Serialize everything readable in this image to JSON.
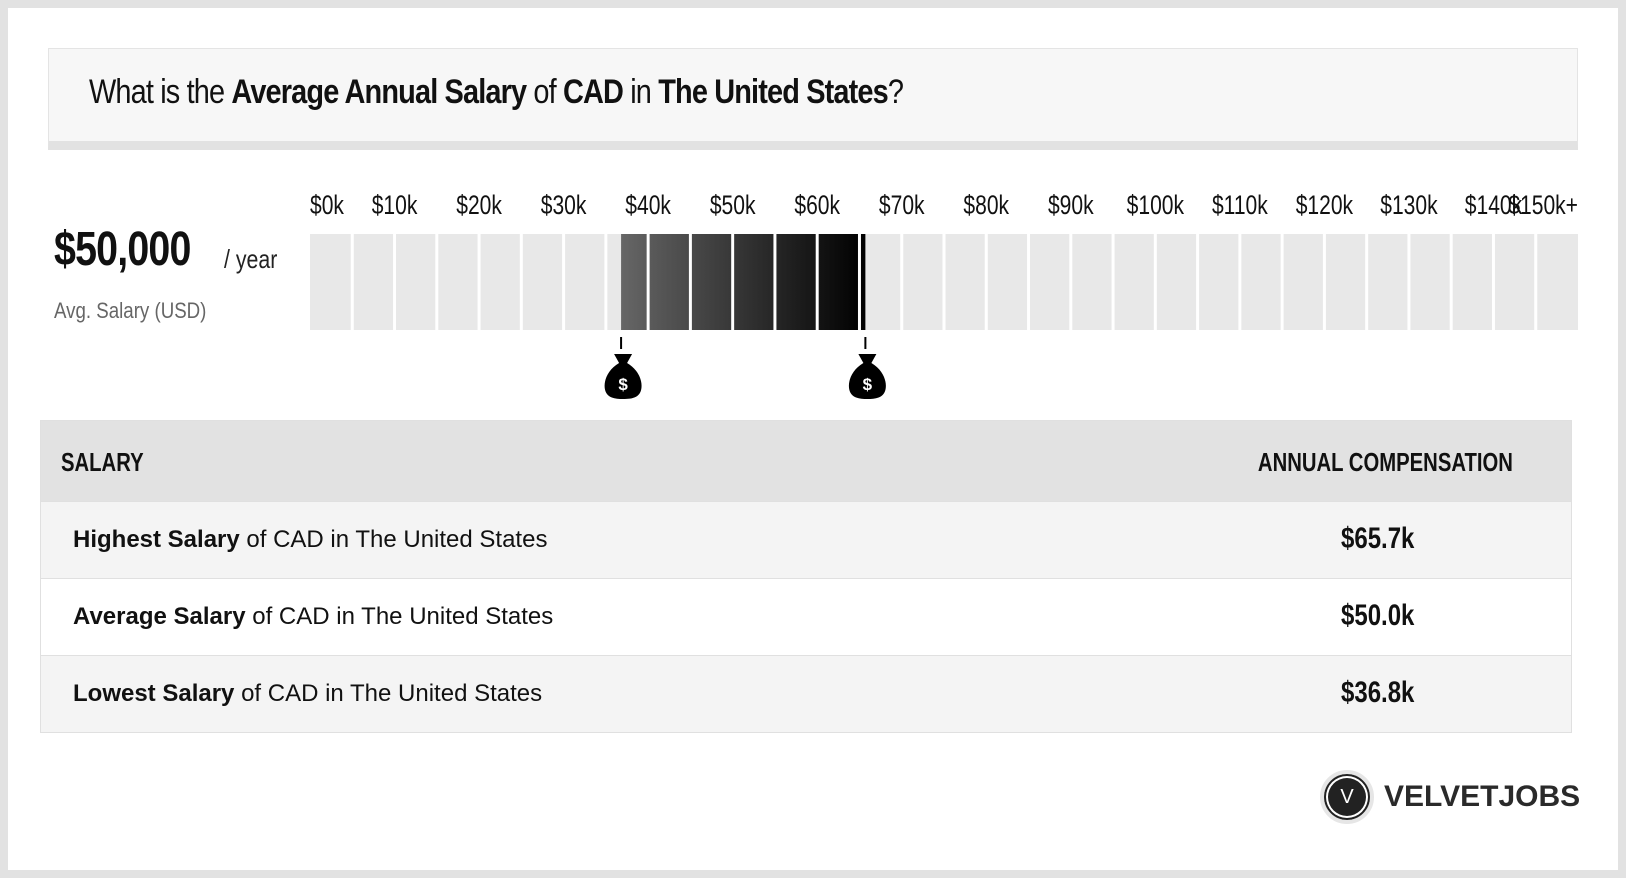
{
  "header": {
    "parts": [
      {
        "text": "What is the ",
        "bold": false
      },
      {
        "text": "Average Annual Salary",
        "bold": true
      },
      {
        "text": " of ",
        "bold": false
      },
      {
        "text": "CAD",
        "bold": true
      },
      {
        "text": " in ",
        "bold": false
      },
      {
        "text": "The United States",
        "bold": true
      },
      {
        "text": "?",
        "bold": false
      }
    ]
  },
  "summary": {
    "value": "$50,000",
    "unit": "/ year",
    "label": "Avg. Salary (USD)"
  },
  "chart_data": {
    "type": "range-bar",
    "tick_labels": [
      "$0k",
      "$10k",
      "$20k",
      "$30k",
      "$40k",
      "$50k",
      "$60k",
      "$70k",
      "$80k",
      "$90k",
      "$100k",
      "$110k",
      "$120k",
      "$130k",
      "$140k",
      "$150k+"
    ],
    "xlim": [
      0,
      150000
    ],
    "segment_step": 5000,
    "range": {
      "low": 36800,
      "high": 65700
    },
    "average": 50000,
    "colors": {
      "empty": "#e8e8e8",
      "fill_start": "#666666",
      "fill_end": "#000000"
    },
    "markers": [
      "money-bag-icon",
      "money-bag-icon"
    ]
  },
  "table": {
    "headers": [
      "SALARY",
      "ANNUAL COMPENSATION"
    ],
    "rows": [
      {
        "bold": "Highest Salary",
        "rest": " of CAD in The United States",
        "value": "$65.7k"
      },
      {
        "bold": "Average Salary",
        "rest": " of CAD in The United States",
        "value": "$50.0k"
      },
      {
        "bold": "Lowest Salary",
        "rest": " of CAD in The United States",
        "value": "$36.8k"
      }
    ]
  },
  "logo": {
    "mark": "V",
    "text": "VELVETJOBS"
  }
}
